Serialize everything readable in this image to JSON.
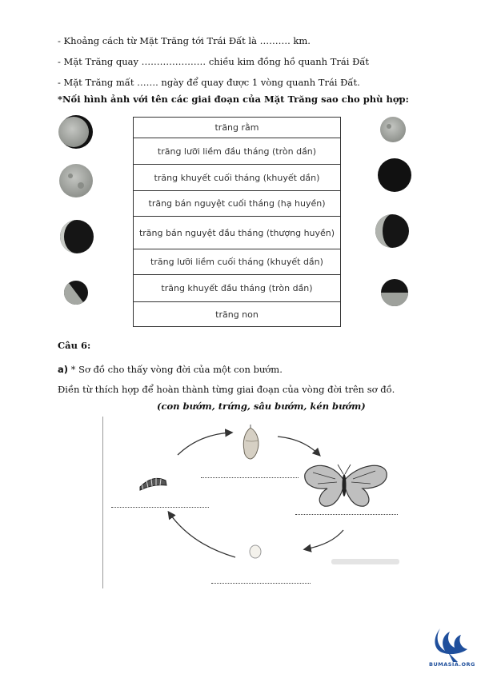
{
  "lines": {
    "l1": "- Khoảng cách từ Mặt Trăng tới Trái Đất là ………. km.",
    "l2": "- Mặt Trăng quay ………………… chiều kim đồng hồ quanh Trái Đất",
    "l3": "- Mặt Trăng mất ……. ngày để quay được 1 vòng quanh Trái Đất.",
    "l4": "*Nối hình ảnh với tên các giai đoạn của Mặt Trăng sao cho phù hợp:"
  },
  "phases": [
    "trăng rằm",
    "trăng lưỡi liềm đầu tháng (tròn dần)",
    "trăng khuyết cuối tháng (khuyết dần)",
    "trăng bán nguyệt cuối tháng (hạ huyền)",
    "trăng bán nguyệt đầu tháng (thượng huyền)",
    "trăng lưỡi liềm cuối tháng (khuyết dần)",
    "trăng khuyết đầu tháng (tròn dần)",
    "trăng non"
  ],
  "question": {
    "title": "Câu 6:",
    "part_label": "a)",
    "part_text": " * Sơ đồ cho thấy vòng đời của một con bướm.",
    "instruction": "Điền từ thích hợp để hoàn thành từng giai đoạn của vòng đời trên sơ đồ.",
    "words": "(con bướm, trứng, sâu bướm, kén bướm)"
  },
  "logo_text": "BUMASIA.ORG",
  "colors": {
    "moon_dark": "#1a1a1a",
    "moon_light": "#a9aba6",
    "logo_blue": "#1f4f9c"
  }
}
